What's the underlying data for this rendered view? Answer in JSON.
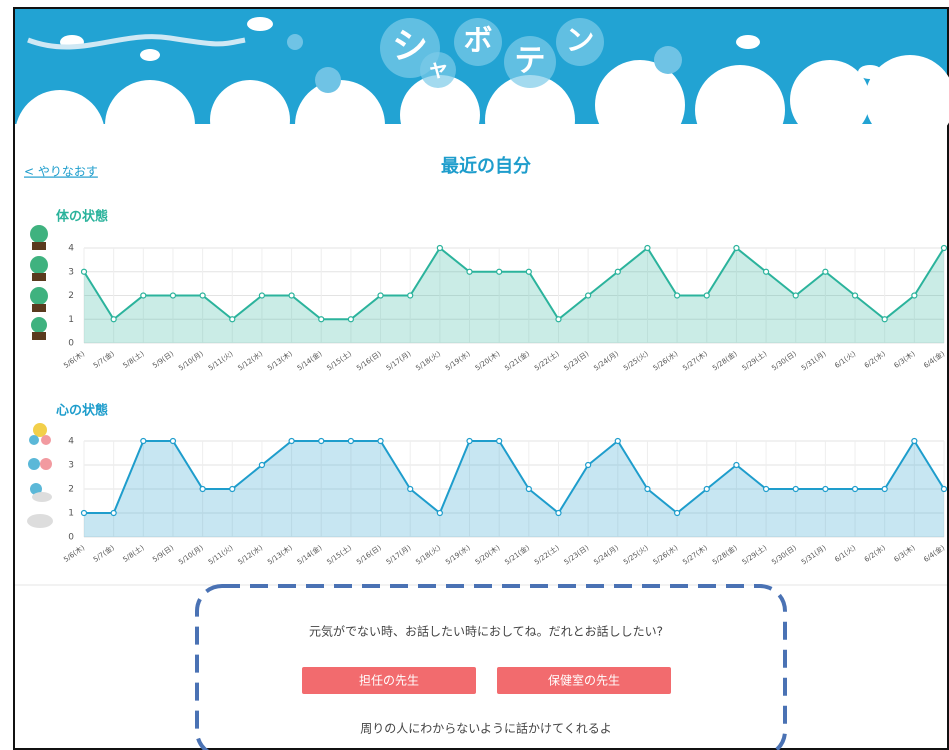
{
  "header": {
    "title_chars": [
      "シ",
      "ャ",
      "ボ",
      "テ",
      "ン"
    ]
  },
  "back_link": "< やりなおす",
  "page_title": "最近の自分",
  "chart_data": [
    {
      "type": "line",
      "title": "体の状態",
      "categories": [
        "5/6(木)",
        "5/7(金)",
        "5/8(土)",
        "5/9(日)",
        "5/10(月)",
        "5/11(火)",
        "5/12(水)",
        "5/13(木)",
        "5/14(金)",
        "5/15(土)",
        "5/16(日)",
        "5/17(月)",
        "5/18(火)",
        "5/19(水)",
        "5/20(木)",
        "5/21(金)",
        "5/22(土)",
        "5/23(日)",
        "5/24(月)",
        "5/25(火)",
        "5/26(水)",
        "5/27(木)",
        "5/28(金)",
        "5/29(土)",
        "5/30(日)",
        "5/31(月)",
        "6/1(火)",
        "6/2(水)",
        "6/3(木)",
        "6/4(金)"
      ],
      "series": [
        {
          "color": "#2bb39c",
          "values": [
            3,
            1,
            2,
            2,
            2,
            1,
            2,
            2,
            1,
            1,
            2,
            2,
            4,
            3,
            3,
            3,
            1,
            2,
            3,
            4,
            2,
            2,
            4,
            3,
            2,
            3,
            2,
            1,
            2,
            4
          ]
        }
      ],
      "ylim": [
        0,
        4
      ],
      "yticks": [
        0,
        1,
        2,
        3,
        4
      ],
      "grid": true
    },
    {
      "type": "line",
      "title": "心の状態",
      "categories": [
        "5/6(木)",
        "5/7(金)",
        "5/8(土)",
        "5/9(日)",
        "5/10(月)",
        "5/11(火)",
        "5/12(水)",
        "5/13(木)",
        "5/14(金)",
        "5/15(土)",
        "5/16(日)",
        "5/17(月)",
        "5/18(火)",
        "5/19(水)",
        "5/20(木)",
        "5/21(金)",
        "5/22(土)",
        "5/23(日)",
        "5/24(月)",
        "5/25(火)",
        "5/26(水)",
        "5/27(木)",
        "5/28(金)",
        "5/29(土)",
        "5/30(日)",
        "5/31(月)",
        "6/1(火)",
        "6/2(水)",
        "6/3(木)",
        "6/4(金)"
      ],
      "series": [
        {
          "color": "#1e9dcc",
          "values": [
            1,
            1,
            4,
            4,
            2,
            2,
            3,
            4,
            4,
            4,
            4,
            2,
            1,
            4,
            4,
            2,
            1,
            3,
            4,
            2,
            1,
            2,
            3,
            2,
            2,
            2,
            2,
            2,
            4,
            2
          ]
        }
      ],
      "ylim": [
        0,
        4
      ],
      "yticks": [
        0,
        1,
        2,
        3,
        4
      ],
      "grid": true
    }
  ],
  "contact": {
    "prompt": "元気がでない時、お話したい時におしてね。だれとお話ししたい?",
    "buttons": [
      "担任の先生",
      "保健室の先生"
    ],
    "note": "周りの人にわからないように話かけてくれるよ"
  }
}
